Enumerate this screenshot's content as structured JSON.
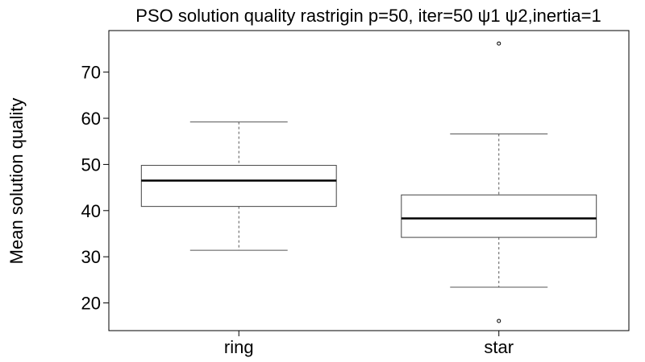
{
  "chart_data": {
    "type": "boxplot",
    "title": "PSO solution quality rastrigin p=50, iter=50 ψ1 ψ2,inertia=1",
    "xlabel": "",
    "ylabel": "Mean solution quality",
    "ylim": [
      14,
      79
    ],
    "yticks": [
      20,
      30,
      40,
      50,
      60,
      70
    ],
    "categories": [
      "ring",
      "star"
    ],
    "boxes": [
      {
        "name": "ring",
        "whisker_low": 31.4,
        "q1": 40.9,
        "median": 46.5,
        "q3": 49.8,
        "whisker_high": 59.2,
        "outliers": []
      },
      {
        "name": "star",
        "whisker_low": 23.4,
        "q1": 34.2,
        "median": 38.3,
        "q3": 43.4,
        "whisker_high": 56.6,
        "outliers": [
          16.1,
          76.2
        ]
      }
    ]
  }
}
